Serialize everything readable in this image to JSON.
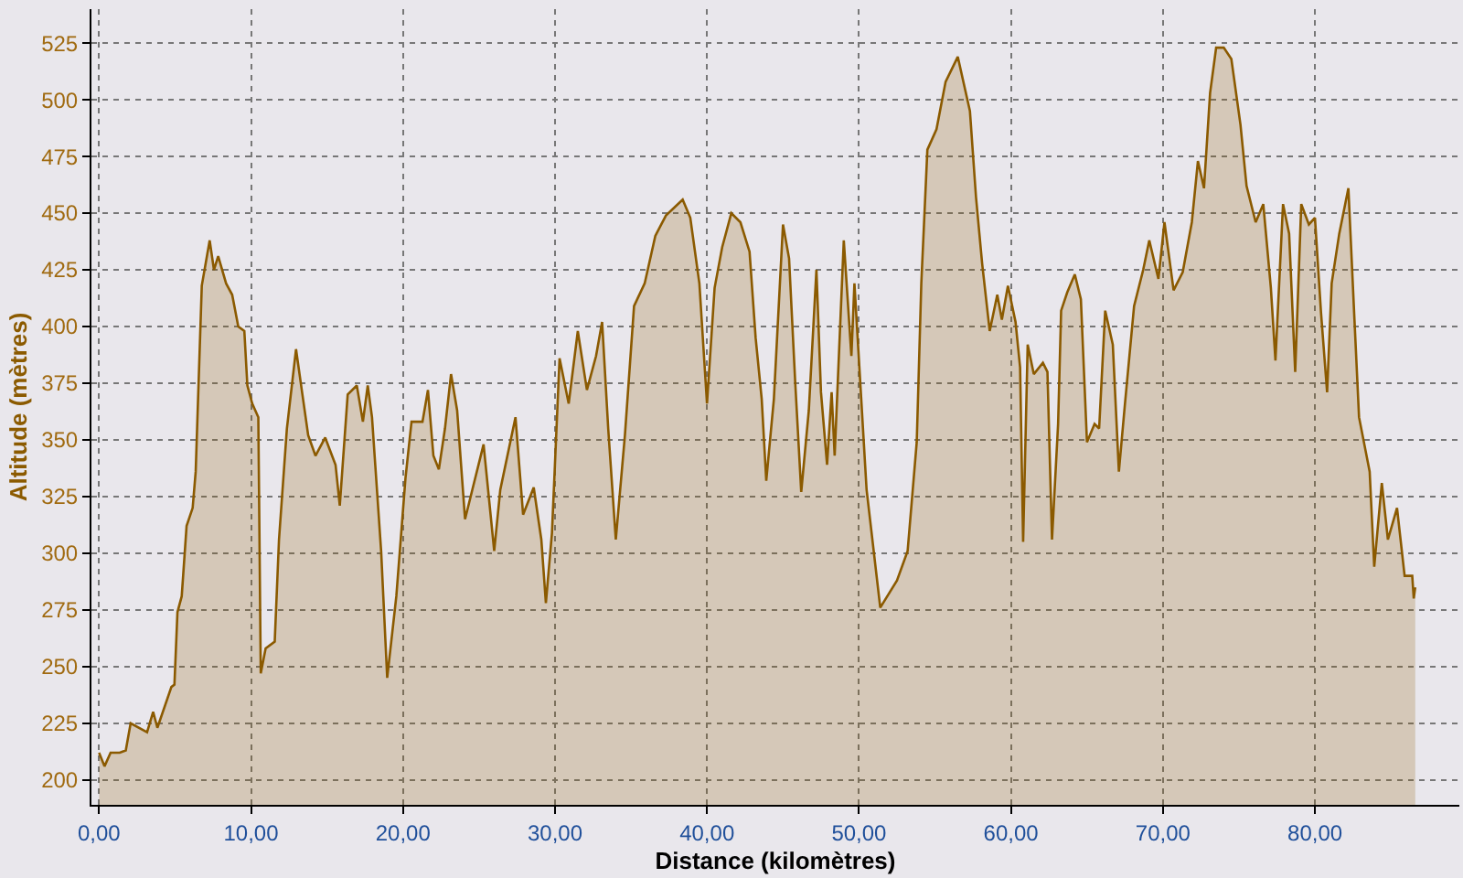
{
  "chart_data": {
    "type": "area",
    "xlabel": "Distance (kilomètres)",
    "ylabel": "Altitude (mètres)",
    "xlim": [
      -0.5,
      89.5
    ],
    "ylim": [
      189,
      540
    ],
    "xticks": [
      {
        "value": 0,
        "label": "0,00"
      },
      {
        "value": 10,
        "label": "10,00"
      },
      {
        "value": 20,
        "label": "20,00"
      },
      {
        "value": 30,
        "label": "30,00"
      },
      {
        "value": 40,
        "label": "40,00"
      },
      {
        "value": 50,
        "label": "50,00"
      },
      {
        "value": 60,
        "label": "60,00"
      },
      {
        "value": 70,
        "label": "70,00"
      },
      {
        "value": 80,
        "label": "80,00"
      }
    ],
    "yticks": [
      200,
      225,
      250,
      275,
      300,
      325,
      350,
      375,
      400,
      425,
      450,
      475,
      500,
      525
    ],
    "grid": true,
    "series": [
      {
        "color": "#8b5a00",
        "x": [
          0,
          0.36,
          0.76,
          1.36,
          1.76,
          2.08,
          3.16,
          3.56,
          3.84,
          4.76,
          4.96,
          5.16,
          5.44,
          5.76,
          6.16,
          6.36,
          6.76,
          7.28,
          7.56,
          7.84,
          8.36,
          8.76,
          9.16,
          9.56,
          9.76,
          10.08,
          10.48,
          10.64,
          10.96,
          11.56,
          11.84,
          12.36,
          12.96,
          13.36,
          13.76,
          14.24,
          14.88,
          15.56,
          15.84,
          16.36,
          16.96,
          17.36,
          17.68,
          17.96,
          18.56,
          18.96,
          19.56,
          20.16,
          20.56,
          21.28,
          21.64,
          22.0,
          22.36,
          22.76,
          23.16,
          23.56,
          24.08,
          24.56,
          25.3,
          26.0,
          26.4,
          27.4,
          27.9,
          28.6,
          29.1,
          29.4,
          29.8,
          30.3,
          30.9,
          31.5,
          32.1,
          32.7,
          33.1,
          33.5,
          34.0,
          34.6,
          35.2,
          35.9,
          36.6,
          37.3,
          38.4,
          38.9,
          39.5,
          40.0,
          40.5,
          41.0,
          41.6,
          42.2,
          42.8,
          43.2,
          43.6,
          43.9,
          44.4,
          45.0,
          45.4,
          45.8,
          46.2,
          46.7,
          47.2,
          47.5,
          47.9,
          48.2,
          48.4,
          49.0,
          49.5,
          49.7,
          50.5,
          51.4,
          52.5,
          53.2,
          53.8,
          54.1,
          54.5,
          55.1,
          55.7,
          56.5,
          57.3,
          57.7,
          58.1,
          58.6,
          59.1,
          59.4,
          59.8,
          60.3,
          60.6,
          60.8,
          61.1,
          61.5,
          62.1,
          62.4,
          62.7,
          63.1,
          63.3,
          63.7,
          64.2,
          64.6,
          65.0,
          65.5,
          65.8,
          66.2,
          66.7,
          67.1,
          67.5,
          68.1,
          68.7,
          69.1,
          69.7,
          70.1,
          70.7,
          71.3,
          71.9,
          72.3,
          72.7,
          73.1,
          73.5,
          74.0,
          74.5,
          75.1,
          75.5,
          76.1,
          76.6,
          77.1,
          77.4,
          77.9,
          78.3,
          78.7,
          79.1,
          79.6,
          80.0,
          80.4,
          80.8,
          81.1,
          81.6,
          82.2,
          82.6,
          82.9,
          83.6,
          83.9,
          84.4,
          84.8,
          85.4,
          85.9,
          86.4,
          86.5,
          86.6
        ],
        "values": [
          212,
          206,
          212,
          212,
          213,
          225,
          221,
          230,
          223,
          241,
          242,
          274,
          281,
          312,
          320,
          336,
          418,
          438,
          425,
          431,
          419,
          414,
          400,
          398,
          374,
          366,
          360,
          247,
          258,
          261,
          306,
          355,
          390,
          371,
          352,
          343,
          351,
          339,
          321,
          370,
          374,
          358,
          374,
          360,
          301,
          245,
          281,
          333,
          358,
          358,
          372,
          343,
          337,
          355,
          379,
          363,
          315,
          328,
          348,
          301,
          328,
          360,
          317,
          329,
          306,
          278,
          309,
          386,
          366,
          398,
          372,
          387,
          402,
          355,
          306,
          352,
          409,
          419,
          440,
          449,
          456,
          448,
          419,
          366,
          417,
          435,
          450,
          446,
          433,
          395,
          368,
          332,
          368,
          445,
          430,
          376,
          327,
          363,
          425,
          371,
          339,
          371,
          343,
          438,
          387,
          419,
          328,
          276,
          288,
          301,
          349,
          419,
          478,
          487,
          508,
          519,
          495,
          457,
          428,
          398,
          414,
          403,
          418,
          402,
          382,
          305,
          392,
          379,
          384,
          380,
          306,
          357,
          407,
          415,
          423,
          412,
          349,
          357,
          355,
          407,
          392,
          336,
          366,
          409,
          425,
          438,
          421,
          446,
          416,
          424,
          446,
          473,
          461,
          503,
          523,
          523,
          518,
          489,
          462,
          446,
          454,
          417,
          385,
          454,
          441,
          380,
          454,
          445,
          448,
          406,
          371,
          419,
          441,
          461,
          403,
          360,
          336,
          294,
          331,
          306,
          320,
          290,
          290,
          280,
          285
        ]
      }
    ]
  }
}
